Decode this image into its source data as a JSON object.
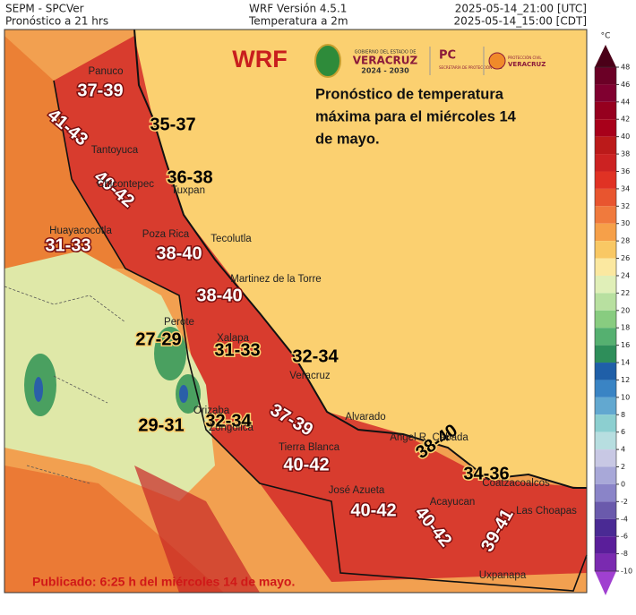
{
  "header": {
    "left": [
      "SEPM - SPCVer",
      "Pronóstico a 21 hrs"
    ],
    "center": [
      "WRF Versión 4.5.1",
      "Temperatura a 2m"
    ],
    "right": [
      "2025-05-14_21:00 [UTC]",
      "2025-05-14_15:00 [CDT]"
    ]
  },
  "model": "WRF",
  "logos": {
    "gov_small": "GOBIERNO DEL ESTADO DE",
    "gov_name": "VERACRUZ",
    "gov_years": "2024 - 2030",
    "pc": "PC",
    "pc_sub": "SECRETARÍA DE PROTECCIÓN CIVIL",
    "pcv_small": "PROTECCIÓN CIVIL",
    "pcv_name": "VERACRUZ"
  },
  "forecast_text": [
    "Pronóstico de temperatura",
    "máxima para el miércoles 14",
    "de mayo."
  ],
  "published": "Publicado: 6:25 h del miércoles 14 de mayo.",
  "range_labels": [
    {
      "text": "37-39",
      "color": "#ffffff"
    },
    {
      "text": "41-43",
      "color": "#ffffff"
    },
    {
      "text": "35-37",
      "color": "#000000"
    },
    {
      "text": "40-42",
      "color": "#ffffff"
    },
    {
      "text": "36-38",
      "color": "#000000"
    },
    {
      "text": "31-33",
      "color": "#ffffff"
    },
    {
      "text": "38-40",
      "color": "#ffffff"
    },
    {
      "text": "38-40",
      "color": "#ffffff"
    },
    {
      "text": "27-29",
      "color": "#000000"
    },
    {
      "text": "31-33",
      "color": "#000000"
    },
    {
      "text": "32-34",
      "color": "#000000"
    },
    {
      "text": "29-31",
      "color": "#000000"
    },
    {
      "text": "32-34",
      "color": "#000000"
    },
    {
      "text": "37-39",
      "color": "#ffffff"
    },
    {
      "text": "40-42",
      "color": "#ffffff"
    },
    {
      "text": "38-40",
      "color": "#000000"
    },
    {
      "text": "34-36",
      "color": "#000000"
    },
    {
      "text": "40-42",
      "color": "#ffffff"
    },
    {
      "text": "40-42",
      "color": "#ffffff"
    },
    {
      "text": "39-41",
      "color": "#ffffff"
    }
  ],
  "cities": [
    "Panuco",
    "Tantoyuca",
    "Chicontepec",
    "Tuxpan",
    "Huayacocotla",
    "Poza Rica",
    "Tecolutla",
    "Martinez de la Torre",
    "Perote",
    "Xalapa",
    "Veracruz",
    "Alvarado",
    "Orizaba",
    "Zongolica",
    "Tierra Blanca",
    "Angel R. Cabada",
    "José Azueta",
    "Acayucan",
    "Coatzacoalcos",
    "Las Choapas",
    "Uxpanapa"
  ],
  "colorbar": {
    "unit": "°C",
    "ticks": [
      48,
      46,
      44,
      42,
      40,
      38,
      36,
      34,
      32,
      30,
      28,
      26,
      24,
      22,
      20,
      18,
      16,
      14,
      12,
      10,
      8,
      6,
      4,
      2,
      0,
      -2,
      -4,
      -6,
      -8,
      -10
    ],
    "colors": [
      "#4a0018",
      "#6b0026",
      "#800030",
      "#96001f",
      "#a8001a",
      "#bb1a1a",
      "#cc2222",
      "#e03224",
      "#e8552f",
      "#f07a3d",
      "#f6a049",
      "#f9c864",
      "#fbe8a0",
      "#e0efb8",
      "#b8e0a0",
      "#88cc80",
      "#55b070",
      "#2e8e5a",
      "#1f5fa8",
      "#3a84c4",
      "#62a8d0",
      "#8ccfd0",
      "#b7dee0",
      "#c8c8e4",
      "#a8a8d8",
      "#8a84c8",
      "#6a5aac",
      "#4a2a94",
      "#5a1e9a",
      "#7a2ab0",
      "#a040d0"
    ]
  }
}
